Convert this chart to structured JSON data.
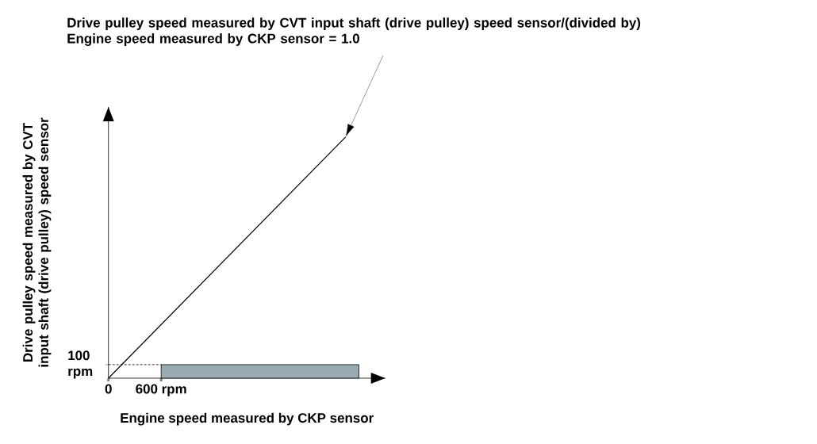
{
  "chart_data": {
    "type": "line",
    "xlabel": "Engine speed measured by CKP sensor",
    "ylabel": "Drive pulley speed measured by CVT input shaft (drive pulley) speed sensor",
    "annotations": [
      "Drive pulley speed measured by CVT input shaft (drive pulley) speed sensor/(divided by) Engine speed measured by CKP sensor = 1.0"
    ],
    "series": [
      {
        "color": "#000000",
        "x": [
          0,
          2700
        ],
        "values": [
          0,
          1780
        ]
      },
      {
        "type": "area",
        "color": "#9aabb3",
        "x": [
          600,
          2850
        ],
        "values": [
          100,
          100
        ]
      },
      {
        "color": "#000000",
        "x": [
          0,
          600
        ],
        "values": [
          100,
          100
        ],
        "line_style": "dashed"
      }
    ],
    "xlim": [
      0,
      3150
    ],
    "ylim": [
      0,
      2000
    ],
    "xticks": [
      0,
      {
        "value": 600,
        "label": "600 rpm"
      }
    ],
    "yticks": [
      {
        "value": 100,
        "label": "100 rpm"
      }
    ],
    "grid": false,
    "marker": "none"
  }
}
